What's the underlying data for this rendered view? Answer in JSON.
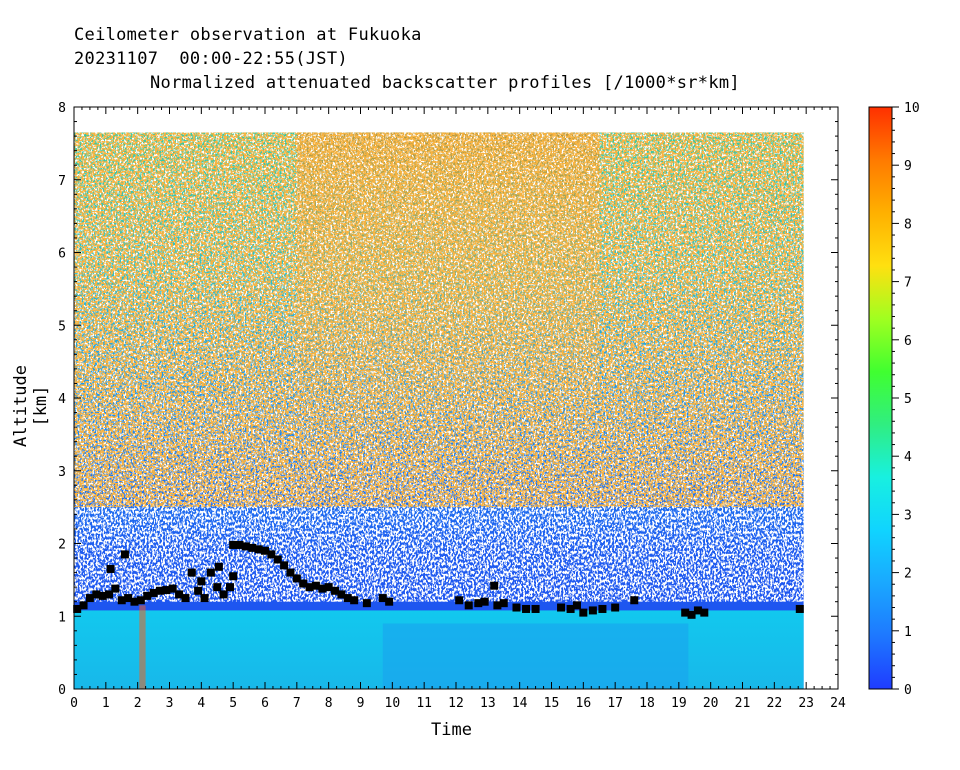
{
  "title_lines": [
    "Ceilometer observation at Fukuoka",
    "20231107  00:00-22:55(JST)"
  ],
  "chart_data": {
    "type": "heatmap",
    "title": "Normalized attenuated backscatter profiles [/1000*sr*km]",
    "xlabel": "Time",
    "ylabel": "Altitude [km]",
    "xlim": [
      0,
      24
    ],
    "ylim": [
      0,
      8
    ],
    "xticks": [
      "0",
      "1",
      "2",
      "3",
      "4",
      "5",
      "6",
      "7",
      "8",
      "9",
      "10",
      "11",
      "12",
      "13",
      "14",
      "15",
      "16",
      "17",
      "18",
      "19",
      "20",
      "21",
      "22",
      "23",
      "24"
    ],
    "yticks": [
      "0",
      "1",
      "2",
      "3",
      "4",
      "5",
      "6",
      "7",
      "8"
    ],
    "data_extent": {
      "time_end": 22.92,
      "altitude_top": 7.65
    },
    "colorbar": {
      "min": 0,
      "max": 10,
      "ticks": [
        "0",
        "1",
        "2",
        "3",
        "4",
        "5",
        "6",
        "7",
        "8",
        "9",
        "10"
      ],
      "colors": [
        "#1f3cff",
        "#1e78ff",
        "#1aa8ff",
        "#10d4ff",
        "#18f0e0",
        "#30ee80",
        "#40ff30",
        "#a0ff20",
        "#ffe010",
        "#ffb000",
        "#ff7a00",
        "#ff3000"
      ]
    },
    "cloud_base_km": [
      {
        "t": 0.1,
        "h": 1.1
      },
      {
        "t": 0.3,
        "h": 1.15
      },
      {
        "t": 0.5,
        "h": 1.25
      },
      {
        "t": 0.7,
        "h": 1.3
      },
      {
        "t": 0.9,
        "h": 1.28
      },
      {
        "t": 1.1,
        "h": 1.3
      },
      {
        "t": 1.15,
        "h": 1.65
      },
      {
        "t": 1.3,
        "h": 1.38
      },
      {
        "t": 1.5,
        "h": 1.22
      },
      {
        "t": 1.6,
        "h": 1.85
      },
      {
        "t": 1.7,
        "h": 1.25
      },
      {
        "t": 1.9,
        "h": 1.2
      },
      {
        "t": 2.1,
        "h": 1.22
      },
      {
        "t": 2.3,
        "h": 1.28
      },
      {
        "t": 2.5,
        "h": 1.32
      },
      {
        "t": 2.7,
        "h": 1.35
      },
      {
        "t": 2.9,
        "h": 1.36
      },
      {
        "t": 3.1,
        "h": 1.38
      },
      {
        "t": 3.3,
        "h": 1.3
      },
      {
        "t": 3.5,
        "h": 1.25
      },
      {
        "t": 3.7,
        "h": 1.6
      },
      {
        "t": 3.9,
        "h": 1.35
      },
      {
        "t": 4.0,
        "h": 1.48
      },
      {
        "t": 4.1,
        "h": 1.25
      },
      {
        "t": 4.3,
        "h": 1.6
      },
      {
        "t": 4.5,
        "h": 1.4
      },
      {
        "t": 4.55,
        "h": 1.68
      },
      {
        "t": 4.7,
        "h": 1.3
      },
      {
        "t": 4.9,
        "h": 1.4
      },
      {
        "t": 5.0,
        "h": 1.55
      },
      {
        "t": 5.0,
        "h": 1.98
      },
      {
        "t": 5.2,
        "h": 1.98
      },
      {
        "t": 5.4,
        "h": 1.96
      },
      {
        "t": 5.6,
        "h": 1.94
      },
      {
        "t": 5.8,
        "h": 1.92
      },
      {
        "t": 6.0,
        "h": 1.9
      },
      {
        "t": 6.2,
        "h": 1.85
      },
      {
        "t": 6.4,
        "h": 1.78
      },
      {
        "t": 6.6,
        "h": 1.7
      },
      {
        "t": 6.8,
        "h": 1.6
      },
      {
        "t": 7.0,
        "h": 1.52
      },
      {
        "t": 7.2,
        "h": 1.45
      },
      {
        "t": 7.4,
        "h": 1.4
      },
      {
        "t": 7.6,
        "h": 1.42
      },
      {
        "t": 7.8,
        "h": 1.38
      },
      {
        "t": 8.0,
        "h": 1.4
      },
      {
        "t": 8.2,
        "h": 1.35
      },
      {
        "t": 8.4,
        "h": 1.3
      },
      {
        "t": 8.6,
        "h": 1.25
      },
      {
        "t": 8.8,
        "h": 1.22
      },
      {
        "t": 9.2,
        "h": 1.18
      },
      {
        "t": 9.7,
        "h": 1.25
      },
      {
        "t": 9.9,
        "h": 1.2
      },
      {
        "t": 12.1,
        "h": 1.22
      },
      {
        "t": 12.4,
        "h": 1.15
      },
      {
        "t": 12.7,
        "h": 1.18
      },
      {
        "t": 12.9,
        "h": 1.2
      },
      {
        "t": 13.2,
        "h": 1.42
      },
      {
        "t": 13.3,
        "h": 1.15
      },
      {
        "t": 13.5,
        "h": 1.18
      },
      {
        "t": 13.9,
        "h": 1.12
      },
      {
        "t": 14.2,
        "h": 1.1
      },
      {
        "t": 14.5,
        "h": 1.1
      },
      {
        "t": 15.3,
        "h": 1.12
      },
      {
        "t": 15.6,
        "h": 1.1
      },
      {
        "t": 15.8,
        "h": 1.15
      },
      {
        "t": 16.0,
        "h": 1.05
      },
      {
        "t": 16.3,
        "h": 1.08
      },
      {
        "t": 16.6,
        "h": 1.1
      },
      {
        "t": 17.0,
        "h": 1.12
      },
      {
        "t": 17.6,
        "h": 1.22
      },
      {
        "t": 19.2,
        "h": 1.05
      },
      {
        "t": 19.4,
        "h": 1.02
      },
      {
        "t": 19.6,
        "h": 1.08
      },
      {
        "t": 19.8,
        "h": 1.05
      },
      {
        "t": 22.8,
        "h": 1.1
      }
    ]
  }
}
